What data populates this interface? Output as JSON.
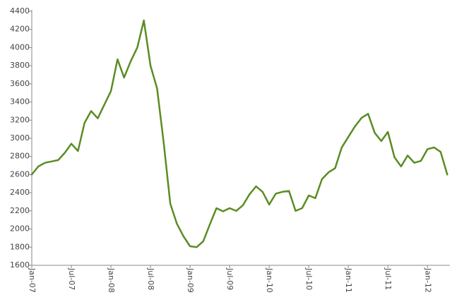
{
  "chart_data": {
    "type": "line",
    "categories": [
      "Jan-07",
      null,
      null,
      null,
      null,
      null,
      "Jul-07",
      null,
      null,
      null,
      null,
      null,
      "Jan-08",
      null,
      null,
      null,
      null,
      null,
      "Jul-08",
      null,
      null,
      null,
      null,
      null,
      "Jan-09",
      null,
      null,
      null,
      null,
      null,
      "Jul-09",
      null,
      null,
      null,
      null,
      null,
      "Jan-10",
      null,
      null,
      null,
      null,
      null,
      "Jul-10",
      null,
      null,
      null,
      null,
      null,
      "Jan-11",
      null,
      null,
      null,
      null,
      null,
      "Jul-11",
      null,
      null,
      null,
      null,
      null,
      "Jan-12",
      null,
      null,
      null
    ],
    "series": [
      {
        "color": "#5b8c23",
        "values": [
          2600,
          2690,
          2730,
          2745,
          2760,
          2840,
          2940,
          2860,
          3170,
          3300,
          3220,
          3370,
          3520,
          3870,
          3670,
          3850,
          4000,
          4300,
          3800,
          3550,
          2950,
          2280,
          2060,
          1920,
          1810,
          1800,
          1865,
          2050,
          2230,
          2195,
          2230,
          2200,
          2260,
          2380,
          2470,
          2410,
          2270,
          2390,
          2410,
          2420,
          2200,
          2230,
          2370,
          2340,
          2550,
          2625,
          2670,
          2900,
          3015,
          3130,
          3225,
          3270,
          3060,
          2970,
          3070,
          2790,
          2690,
          2810,
          2730,
          2750,
          2880,
          2900,
          2850,
          2600
        ]
      }
    ],
    "ylim": [
      1600,
      4400
    ],
    "yticks": [
      1600,
      1800,
      2000,
      2200,
      2400,
      2600,
      2800,
      3000,
      3200,
      3400,
      3600,
      3800,
      4000,
      4200,
      4400
    ],
    "grid": false
  }
}
